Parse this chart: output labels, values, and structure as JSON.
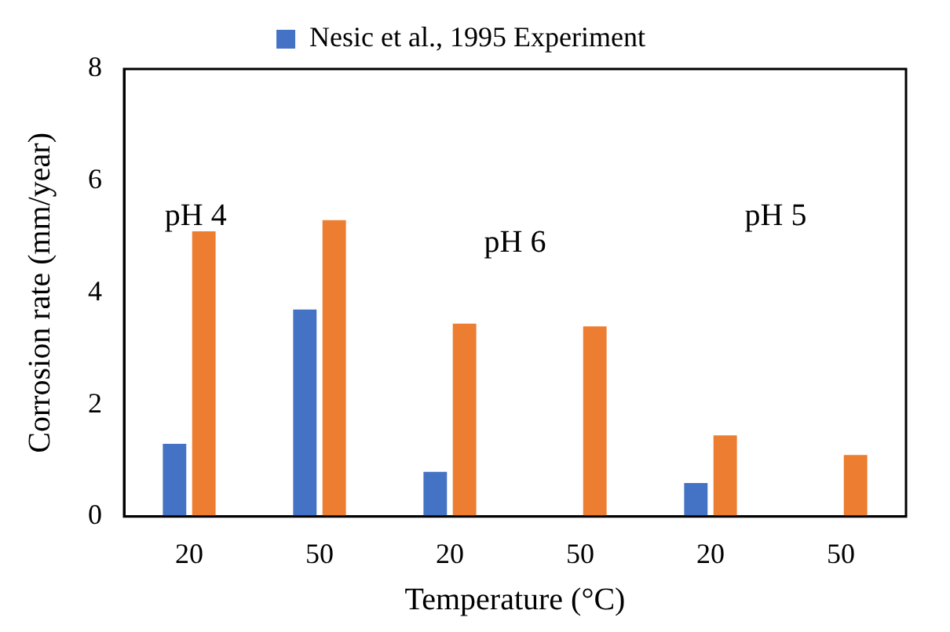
{
  "chart_data": {
    "type": "bar",
    "xlabel": "Temperature (°C)",
    "ylabel": "Corrosion rate (mm/year)",
    "categories": [
      "20",
      "50",
      "20",
      "50",
      "20",
      "50"
    ],
    "series": [
      {
        "name": "Nesic et al., 1995 Experiment",
        "color": "#4472c4",
        "values": [
          1.3,
          3.7,
          0.8,
          null,
          0.6,
          null
        ]
      },
      {
        "color": "#ed7d31",
        "values": [
          5.1,
          5.3,
          3.45,
          3.4,
          1.45,
          1.1
        ]
      }
    ],
    "ylim": [
      0,
      8
    ],
    "yticks": [
      0,
      2,
      4,
      6,
      8
    ],
    "grid": false,
    "legend": "top",
    "annotations": [
      "pH 4",
      "pH 6",
      "pH 5"
    ]
  }
}
